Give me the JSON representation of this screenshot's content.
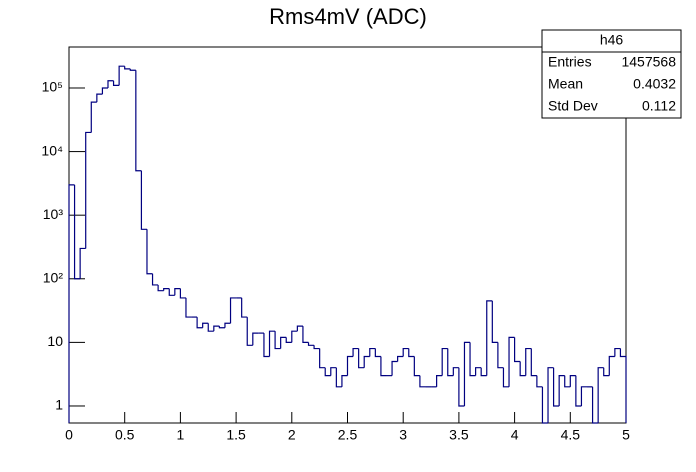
{
  "chart_data": {
    "type": "histogram",
    "title": "Rms4mV (ADC)",
    "color": "#000080",
    "log_y": true,
    "bins": [
      0,
      0.05,
      0.1,
      0.15,
      0.2,
      0.25,
      0.3,
      0.35,
      0.4,
      0.45,
      0.5,
      0.55,
      0.6,
      0.65,
      0.7,
      0.75,
      0.8,
      0.85,
      0.9,
      0.95,
      1,
      1.05,
      1.1,
      1.15,
      1.2,
      1.25,
      1.3,
      1.35,
      1.4,
      1.45,
      1.5,
      1.55,
      1.6,
      1.65,
      1.7,
      1.75,
      1.8,
      1.85,
      1.9,
      1.95,
      2,
      2.05,
      2.1,
      2.15,
      2.2,
      2.25,
      2.3,
      2.35,
      2.4,
      2.45,
      2.5,
      2.55,
      2.6,
      2.65,
      2.7,
      2.75,
      2.8,
      2.85,
      2.9,
      2.95,
      3,
      3.05,
      3.1,
      3.15,
      3.2,
      3.25,
      3.3,
      3.35,
      3.4,
      3.45,
      3.5,
      3.55,
      3.6,
      3.65,
      3.7,
      3.75,
      3.8,
      3.85,
      3.9,
      3.95,
      4,
      4.05,
      4.1,
      4.15,
      4.2,
      4.25,
      4.3,
      4.35,
      4.4,
      4.45,
      4.5,
      4.55,
      4.6,
      4.65,
      4.7,
      4.75,
      4.8,
      4.85,
      4.9,
      4.95,
      5
    ],
    "values": [
      3000,
      100,
      300,
      20000,
      60000,
      80000,
      100000,
      130000,
      110000,
      220000,
      200000,
      190000,
      5000,
      600,
      120,
      80,
      65,
      70,
      55,
      70,
      50,
      25,
      25,
      17,
      20,
      15,
      18,
      17,
      20,
      50,
      50,
      25,
      9,
      14,
      14,
      6,
      15,
      8,
      12,
      10,
      15,
      18,
      10,
      9,
      8,
      4,
      3,
      4,
      2,
      3,
      6,
      8,
      4,
      6,
      8,
      6,
      3,
      3,
      5,
      6,
      8,
      6,
      3,
      2,
      2,
      2,
      3,
      8,
      3,
      4,
      1,
      10,
      3,
      4,
      3,
      45,
      10,
      4,
      2,
      12,
      5,
      3,
      8,
      3,
      2,
      0,
      4,
      1,
      3,
      2,
      3,
      1,
      2,
      2,
      0,
      4,
      3,
      6,
      8,
      6
    ],
    "xlim": [
      0,
      5
    ],
    "ylim": [
      0.54,
      441000
    ],
    "xticks": [
      0,
      0.5,
      1,
      1.5,
      2,
      2.5,
      3,
      3.5,
      4,
      4.5,
      5
    ],
    "yticks": [
      1,
      10,
      {
        "value": 100,
        "label": "10²"
      },
      {
        "value": 1000,
        "label": "10³"
      },
      {
        "value": 10000,
        "label": "10⁴"
      },
      {
        "value": 100000,
        "label": "10⁵"
      }
    ],
    "stats": {
      "name": "h46",
      "rows": [
        [
          "Entries",
          1457568
        ],
        [
          "Mean",
          0.4032
        ],
        [
          "Std Dev",
          0.112
        ]
      ]
    }
  }
}
